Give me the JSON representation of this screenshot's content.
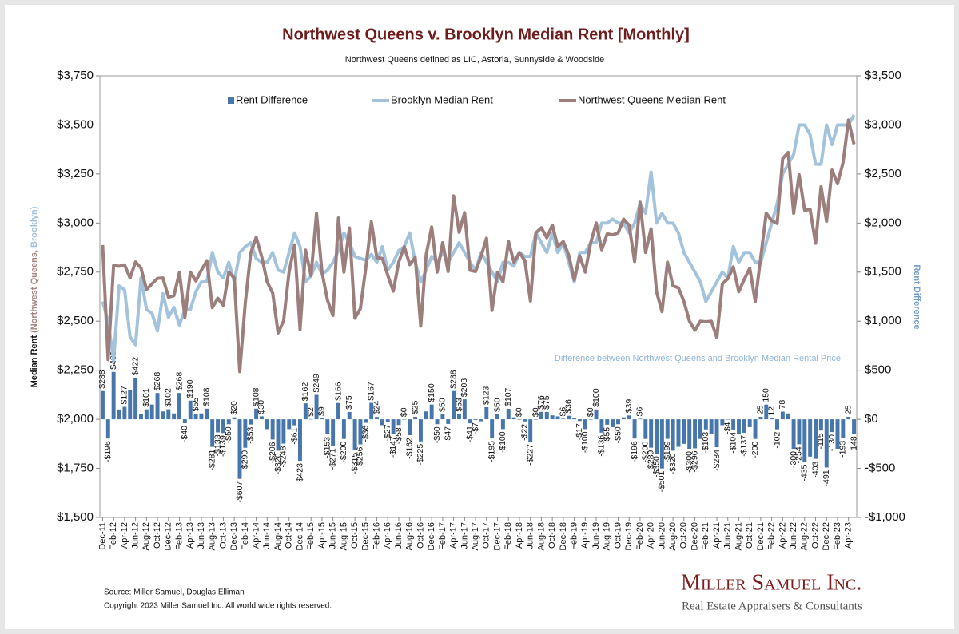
{
  "chart_data": {
    "type": "combo",
    "title": "Northwest Queens v. Brooklyn Median Rent [Monthly]",
    "subtitle": "Northwest Queens defined as LIC, Astoria, Sunnyside & Woodside",
    "y_label_parts": [
      "Median Rent",
      "(Northwest Queens,",
      "Brooklyn)"
    ],
    "y2_label": "Rent Difference",
    "annotation": "Difference between Northwest Queens and Brooklyn Median Rental Price",
    "source": "Source: Miller Samuel, Douglas Elliman",
    "copyright": "Copyright 2023 Miller Samuel Inc.  All world wide rights reserved.",
    "logo": {
      "name": "Miller Samuel Inc.",
      "tagline": "Real Estate Appraisers & Consultants"
    },
    "legend": "top",
    "categories": [
      "Dec-11",
      null,
      "Feb-12",
      null,
      "Apr-12",
      null,
      "Jun-12",
      null,
      "Aug-12",
      null,
      "Oct-12",
      null,
      "Dec-12",
      null,
      "Feb-13",
      null,
      "Apr-13",
      null,
      "Jun-13",
      null,
      "Aug-13",
      null,
      "Oct-13",
      null,
      "Dec-13",
      null,
      "Feb-14",
      null,
      "Apr-14",
      null,
      "Jun-14",
      null,
      "Aug-14",
      null,
      "Oct-14",
      null,
      "Dec-14",
      null,
      "Feb-15",
      null,
      "Apr-15",
      null,
      "Jun-15",
      null,
      "Aug-15",
      null,
      "Oct-15",
      null,
      "Dec-15",
      null,
      "Feb-16",
      null,
      "Apr-16",
      null,
      "Jun-16",
      null,
      "Aug-16",
      null,
      "Oct-16",
      null,
      "Dec-16",
      null,
      "Feb-17",
      null,
      "Apr-17",
      null,
      "Jun-17",
      null,
      "Aug-17",
      null,
      "Oct-17",
      null,
      "Dec-17",
      null,
      "Feb-18",
      null,
      "Apr-18",
      null,
      "Jun-18",
      null,
      "Aug-18",
      null,
      "Oct-18",
      null,
      "Dec-18",
      null,
      "Feb-19",
      null,
      "Apr-19",
      null,
      "Jun-19",
      null,
      "Aug-19",
      null,
      "Oct-19",
      null,
      "Dec-19",
      null,
      "Feb-20",
      null,
      "Apr-20",
      null,
      "Jun-20",
      null,
      "Aug-20",
      null,
      "Oct-20",
      null,
      "Dec-20",
      null,
      "Feb-21",
      null,
      "Apr-21",
      null,
      "Jun-21",
      null,
      "Aug-21",
      null,
      "Oct-21",
      null,
      "Dec-21",
      null,
      "Feb-22",
      null,
      "Apr-22",
      null,
      "Jun-22",
      null,
      "Aug-22",
      null,
      "Oct-22",
      null,
      "Dec-22",
      null,
      "Feb-23",
      null,
      "Apr-23",
      null
    ],
    "series": [
      {
        "name": "Rent Difference",
        "type": "bar",
        "axis": "y2",
        "color": "#4676ab",
        "values": [
          288,
          -196,
          483,
          100,
          127,
          300,
          422,
          50,
          101,
          150,
          268,
          80,
          102,
          60,
          268,
          -40,
          190,
          55,
          60,
          108,
          -281,
          -133,
          -139,
          -50,
          20,
          -607,
          -290,
          -53,
          108,
          30,
          -100,
          -206,
          -320,
          -248,
          -100,
          -61,
          -423,
          162,
          2,
          249,
          9,
          -153,
          -271,
          166,
          -200,
          75,
          -315,
          -256,
          -36,
          167,
          24,
          -60,
          -27,
          -147,
          -58,
          0,
          -162,
          25,
          -225,
          80,
          150,
          -50,
          50,
          -47,
          288,
          53,
          203,
          -41,
          -7,
          -20,
          123,
          -195,
          50,
          -100,
          107,
          20,
          0,
          -22,
          -227,
          0,
          76,
          75,
          40,
          30,
          6,
          36,
          10,
          -17,
          -100,
          0,
          100,
          -136,
          -55,
          -80,
          -50,
          20,
          39,
          -196,
          6,
          -200,
          -289,
          -350,
          -501,
          -199,
          -320,
          -280,
          -250,
          -300,
          -296,
          -200,
          -103,
          -150,
          -284,
          -60,
          -4,
          -104,
          -150,
          -137,
          -80,
          -200,
          25,
          150,
          12,
          -102,
          78,
          60,
          -300,
          -254,
          -435,
          -380,
          -403,
          -115,
          -491,
          -130,
          -300,
          -193,
          25,
          -148
        ],
        "value_labels": [
          "$288",
          "-$196",
          "$483",
          null,
          "$127",
          null,
          "$422",
          null,
          "$101",
          null,
          "$268",
          null,
          "$102",
          null,
          "$268",
          "-$40",
          "$190",
          "$55",
          null,
          "$108",
          "-$281",
          "-$133",
          "-$139",
          "-$50",
          "$20",
          "-$607",
          "-$290",
          "-$53",
          "$108",
          "$30",
          null,
          "-$206",
          "-$320",
          "-$248",
          null,
          "-$61",
          "-$423",
          "$162",
          "$2",
          "$249",
          "$9",
          "-$153",
          "-$271",
          "$166",
          "-$200",
          "$75",
          "-$315",
          "-$256",
          "-$36",
          "$167",
          "$24",
          null,
          "-$27",
          "-$147",
          "-$58",
          "$0",
          "-$162",
          "$25",
          "-$225",
          null,
          "$150",
          "-$50",
          "$50",
          "-$47",
          "$288",
          "$53",
          "$203",
          "-$41",
          "-$7",
          null,
          "$123",
          "-$195",
          "$50",
          "-$100",
          "$107",
          null,
          "$0",
          "-$22",
          "-$227",
          "$0",
          "$76",
          "$75",
          null,
          null,
          "$6",
          "$36",
          null,
          "-$17",
          "-$100",
          "$0",
          "$100",
          "-$136",
          "-$55",
          null,
          "-$50",
          null,
          "$39",
          "-$196",
          "$6",
          "-$200",
          "-$289",
          "-$350",
          "-$501",
          "-$199",
          "-$320",
          null,
          null,
          "-$300",
          "-$296",
          null,
          "-$103",
          null,
          "-$284",
          null,
          "-$4",
          "-$104",
          null,
          "-$137",
          null,
          "-200",
          "25",
          "150",
          "12",
          "-102",
          "78",
          null,
          "-300",
          "-254",
          "-435",
          null,
          "-403",
          "-115",
          "-491",
          "-130",
          null,
          "-193",
          "25",
          "-148"
        ]
      },
      {
        "name": "Brooklyn Median Rent",
        "type": "line",
        "color": "#a3c3dc",
        "values": [
          2600,
          2500,
          2300,
          2680,
          2660,
          2420,
          2380,
          2720,
          2560,
          2540,
          2450,
          2640,
          2520,
          2570,
          2480,
          2560,
          2560,
          2650,
          2700,
          2700,
          2850,
          2750,
          2720,
          2800,
          2700,
          2850,
          2880,
          2900,
          2820,
          2800,
          2800,
          2850,
          2760,
          2750,
          2850,
          2950,
          2880,
          2700,
          2730,
          2800,
          2740,
          2760,
          2800,
          2860,
          2950,
          2900,
          2830,
          2820,
          2810,
          2840,
          2800,
          2880,
          2760,
          2800,
          2860,
          2880,
          2950,
          2800,
          2700,
          2760,
          2830,
          2800,
          2850,
          2800,
          2850,
          2900,
          2850,
          2800,
          2760,
          2850,
          2800,
          2750,
          2700,
          2800,
          2800,
          2780,
          2850,
          2830,
          2830,
          2950,
          2900,
          2850,
          2950,
          2850,
          2900,
          2800,
          2700,
          2850,
          2850,
          2900,
          2900,
          3000,
          3000,
          3020,
          3000,
          3000,
          2950,
          3000,
          3100,
          3050,
          3260,
          3000,
          3050,
          3000,
          3000,
          2950,
          2850,
          2800,
          2750,
          2700,
          2600,
          2650,
          2700,
          2750,
          2720,
          2880,
          2800,
          2850,
          2850,
          2800,
          2800,
          2900,
          3000,
          3100,
          3250,
          3300,
          3350,
          3500,
          3500,
          3450,
          3300,
          3300,
          3500,
          3400,
          3500,
          3500,
          3500,
          3550
        ]
      },
      {
        "name": "Northwest Queens Median Rent",
        "type": "line",
        "color": "#9c7f7d",
        "values": [
          2888,
          2304,
          2783,
          2780,
          2787,
          2720,
          2802,
          2770,
          2661,
          2690,
          2718,
          2720,
          2622,
          2630,
          2748,
          2520,
          2750,
          2705,
          2760,
          2808,
          2569,
          2617,
          2581,
          2750,
          2720,
          2243,
          2590,
          2847,
          2928,
          2830,
          2700,
          2644,
          2440,
          2502,
          2750,
          2889,
          2457,
          2862,
          2732,
          3049,
          2749,
          2607,
          2529,
          3026,
          2750,
          2975,
          2515,
          2564,
          2774,
          3007,
          2824,
          2820,
          2733,
          2653,
          2802,
          2880,
          2788,
          2825,
          2475,
          2840,
          2980,
          2750,
          2900,
          2753,
          3138,
          2953,
          3053,
          2759,
          2753,
          2830,
          2923,
          2555,
          2750,
          2700,
          2907,
          2800,
          2850,
          2808,
          2603,
          2950,
          2976,
          2925,
          2990,
          2880,
          2906,
          2836,
          2710,
          2833,
          2750,
          2900,
          3000,
          2864,
          2945,
          2940,
          2950,
          3020,
          2989,
          2804,
          3106,
          2850,
          2971,
          2650,
          2549,
          2801,
          2680,
          2670,
          2600,
          2500,
          2454,
          2500,
          2497,
          2500,
          2416,
          2690,
          2716,
          2776,
          2650,
          2713,
          2770,
          2600,
          2825,
          3050,
          3012,
          2998,
          3328,
          3360,
          3050,
          3246,
          3065,
          3070,
          2897,
          3185,
          3009,
          3270,
          3200,
          3307,
          3525,
          3402
        ]
      }
    ],
    "ylim": [
      1500,
      3750
    ],
    "yticks": [
      {
        "value": 1500,
        "label": "$1,500"
      },
      {
        "value": 1750,
        "label": "$1,750"
      },
      {
        "value": 2000,
        "label": "$2,000"
      },
      {
        "value": 2250,
        "label": "$2,250"
      },
      {
        "value": 2500,
        "label": "$2,500"
      },
      {
        "value": 2750,
        "label": "$2,750"
      },
      {
        "value": 3000,
        "label": "$3,000"
      },
      {
        "value": 3250,
        "label": "$3,250"
      },
      {
        "value": 3500,
        "label": "$3,500"
      },
      {
        "value": 3750,
        "label": "$3,750"
      }
    ],
    "y2lim": [
      -1000,
      3500
    ],
    "y2ticks": [
      {
        "value": -1000,
        "label": "-$1,000"
      },
      {
        "value": -500,
        "label": "-$500"
      },
      {
        "value": 0,
        "label": "$0"
      },
      {
        "value": 500,
        "label": "$500"
      },
      {
        "value": 1000,
        "label": "$1,000"
      },
      {
        "value": 1500,
        "label": "$1,500"
      },
      {
        "value": 2000,
        "label": "$2,000"
      },
      {
        "value": 2500,
        "label": "$2,500"
      },
      {
        "value": 3000,
        "label": "$3,000"
      },
      {
        "value": 3500,
        "label": "$3,500"
      }
    ],
    "grid": false
  }
}
